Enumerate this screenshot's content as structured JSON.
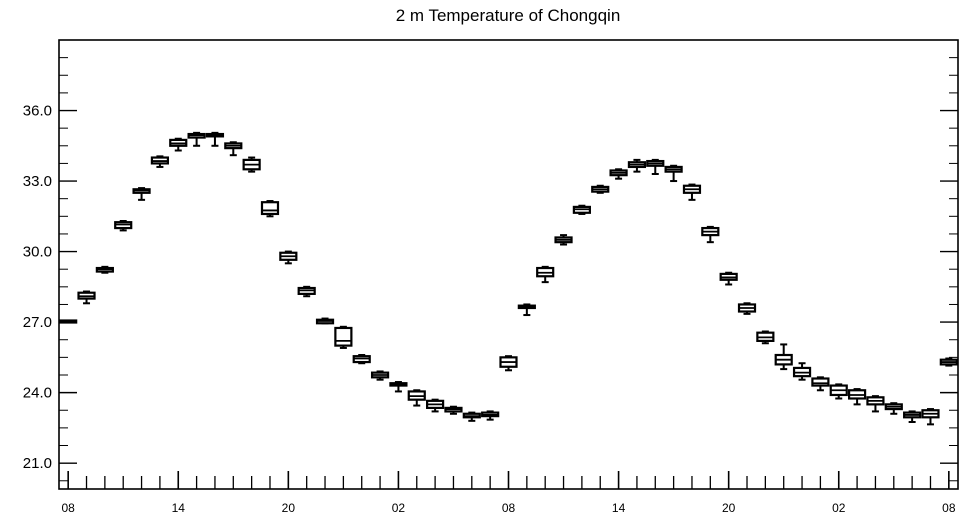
{
  "chart_data": {
    "type": "boxplot",
    "title": "2 m Temperature of Chongqin",
    "xlabel": "",
    "ylabel": "",
    "ylim": [
      19.9,
      39.0
    ],
    "yticks": [
      21.0,
      24.0,
      27.0,
      30.0,
      33.0,
      36.0
    ],
    "ytick_labels": [
      "21.0",
      "24.0",
      "27.0",
      "30.0",
      "33.0",
      "36.0"
    ],
    "xlim": [
      -0.5,
      48.5
    ],
    "xticks": [
      0,
      6,
      12,
      18,
      24,
      30,
      36,
      42,
      48
    ],
    "xtick_labels": [
      "08",
      "14",
      "20",
      "02",
      "08",
      "14",
      "20",
      "02",
      "08"
    ],
    "grid": false,
    "boxes": [
      {
        "x": 0,
        "min": 27.0,
        "q1": 27.0,
        "median": 27.0,
        "q3": 27.05,
        "max": 27.05
      },
      {
        "x": 1,
        "min": 27.8,
        "q1": 28.0,
        "median": 28.1,
        "q3": 28.25,
        "max": 28.3
      },
      {
        "x": 2,
        "min": 29.1,
        "q1": 29.15,
        "median": 29.25,
        "q3": 29.3,
        "max": 29.35
      },
      {
        "x": 3,
        "min": 30.9,
        "q1": 31.0,
        "median": 31.15,
        "q3": 31.25,
        "max": 31.3
      },
      {
        "x": 4,
        "min": 32.2,
        "q1": 32.5,
        "median": 32.6,
        "q3": 32.65,
        "max": 32.7
      },
      {
        "x": 5,
        "min": 33.6,
        "q1": 33.75,
        "median": 33.85,
        "q3": 34.0,
        "max": 34.05
      },
      {
        "x": 6,
        "min": 34.3,
        "q1": 34.5,
        "median": 34.6,
        "q3": 34.75,
        "max": 34.8
      },
      {
        "x": 7,
        "min": 34.5,
        "q1": 34.85,
        "median": 34.95,
        "q3": 35.0,
        "max": 35.05
      },
      {
        "x": 8,
        "min": 34.5,
        "q1": 34.9,
        "median": 34.95,
        "q3": 35.0,
        "max": 35.05
      },
      {
        "x": 9,
        "min": 34.1,
        "q1": 34.4,
        "median": 34.5,
        "q3": 34.6,
        "max": 34.65
      },
      {
        "x": 10,
        "min": 33.4,
        "q1": 33.5,
        "median": 33.7,
        "q3": 33.9,
        "max": 34.0
      },
      {
        "x": 11,
        "min": 31.5,
        "q1": 31.6,
        "median": 31.75,
        "q3": 32.1,
        "max": 32.15
      },
      {
        "x": 12,
        "min": 29.5,
        "q1": 29.65,
        "median": 29.8,
        "q3": 29.95,
        "max": 30.0
      },
      {
        "x": 13,
        "min": 28.1,
        "q1": 28.2,
        "median": 28.35,
        "q3": 28.45,
        "max": 28.5
      },
      {
        "x": 14,
        "min": 26.95,
        "q1": 26.95,
        "median": 27.05,
        "q3": 27.1,
        "max": 27.15
      },
      {
        "x": 15,
        "min": 25.9,
        "q1": 26.0,
        "median": 26.2,
        "q3": 26.75,
        "max": 26.8
      },
      {
        "x": 16,
        "min": 25.25,
        "q1": 25.3,
        "median": 25.45,
        "q3": 25.55,
        "max": 25.6
      },
      {
        "x": 17,
        "min": 24.55,
        "q1": 24.65,
        "median": 24.75,
        "q3": 24.85,
        "max": 24.9
      },
      {
        "x": 18,
        "min": 24.05,
        "q1": 24.3,
        "median": 24.35,
        "q3": 24.4,
        "max": 24.45
      },
      {
        "x": 19,
        "min": 23.45,
        "q1": 23.7,
        "median": 23.85,
        "q3": 24.05,
        "max": 24.1
      },
      {
        "x": 20,
        "min": 23.2,
        "q1": 23.35,
        "median": 23.5,
        "q3": 23.65,
        "max": 23.7
      },
      {
        "x": 21,
        "min": 23.1,
        "q1": 23.2,
        "median": 23.3,
        "q3": 23.35,
        "max": 23.4
      },
      {
        "x": 22,
        "min": 22.8,
        "q1": 22.95,
        "median": 23.0,
        "q3": 23.1,
        "max": 23.15
      },
      {
        "x": 23,
        "min": 22.85,
        "q1": 23.0,
        "median": 23.05,
        "q3": 23.15,
        "max": 23.2
      },
      {
        "x": 24,
        "min": 24.95,
        "q1": 25.1,
        "median": 25.3,
        "q3": 25.5,
        "max": 25.55
      },
      {
        "x": 25,
        "min": 27.3,
        "q1": 27.6,
        "median": 27.65,
        "q3": 27.7,
        "max": 27.75
      },
      {
        "x": 26,
        "min": 28.7,
        "q1": 28.95,
        "median": 29.1,
        "q3": 29.3,
        "max": 29.35
      },
      {
        "x": 27,
        "min": 30.3,
        "q1": 30.4,
        "median": 30.5,
        "q3": 30.6,
        "max": 30.7
      },
      {
        "x": 28,
        "min": 31.6,
        "q1": 31.65,
        "median": 31.8,
        "q3": 31.9,
        "max": 31.95
      },
      {
        "x": 29,
        "min": 32.5,
        "q1": 32.55,
        "median": 32.65,
        "q3": 32.75,
        "max": 32.8
      },
      {
        "x": 30,
        "min": 33.1,
        "q1": 33.25,
        "median": 33.35,
        "q3": 33.45,
        "max": 33.5
      },
      {
        "x": 31,
        "min": 33.4,
        "q1": 33.6,
        "median": 33.7,
        "q3": 33.8,
        "max": 33.9
      },
      {
        "x": 32,
        "min": 33.3,
        "q1": 33.65,
        "median": 33.75,
        "q3": 33.85,
        "max": 33.9
      },
      {
        "x": 33,
        "min": 33.0,
        "q1": 33.4,
        "median": 33.5,
        "q3": 33.6,
        "max": 33.65
      },
      {
        "x": 34,
        "min": 32.2,
        "q1": 32.5,
        "median": 32.65,
        "q3": 32.8,
        "max": 32.85
      },
      {
        "x": 35,
        "min": 30.4,
        "q1": 30.7,
        "median": 30.85,
        "q3": 31.0,
        "max": 31.05
      },
      {
        "x": 36,
        "min": 28.6,
        "q1": 28.8,
        "median": 28.9,
        "q3": 29.05,
        "max": 29.1
      },
      {
        "x": 37,
        "min": 27.35,
        "q1": 27.45,
        "median": 27.6,
        "q3": 27.75,
        "max": 27.8
      },
      {
        "x": 38,
        "min": 26.1,
        "q1": 26.2,
        "median": 26.35,
        "q3": 26.55,
        "max": 26.6
      },
      {
        "x": 39,
        "min": 25.0,
        "q1": 25.2,
        "median": 25.4,
        "q3": 25.6,
        "max": 26.05
      },
      {
        "x": 40,
        "min": 24.55,
        "q1": 24.7,
        "median": 24.85,
        "q3": 25.05,
        "max": 25.25
      },
      {
        "x": 41,
        "min": 24.1,
        "q1": 24.3,
        "median": 24.4,
        "q3": 24.6,
        "max": 24.65
      },
      {
        "x": 42,
        "min": 23.75,
        "q1": 23.9,
        "median": 24.1,
        "q3": 24.3,
        "max": 24.35
      },
      {
        "x": 43,
        "min": 23.5,
        "q1": 23.75,
        "median": 23.9,
        "q3": 24.1,
        "max": 24.15
      },
      {
        "x": 44,
        "min": 23.2,
        "q1": 23.5,
        "median": 23.65,
        "q3": 23.8,
        "max": 23.85
      },
      {
        "x": 45,
        "min": 23.1,
        "q1": 23.3,
        "median": 23.4,
        "q3": 23.5,
        "max": 23.55
      },
      {
        "x": 46,
        "min": 22.75,
        "q1": 22.95,
        "median": 23.05,
        "q3": 23.15,
        "max": 23.2
      },
      {
        "x": 47,
        "min": 22.65,
        "q1": 22.95,
        "median": 23.1,
        "q3": 23.25,
        "max": 23.3
      },
      {
        "x": 48,
        "min": 25.15,
        "q1": 25.2,
        "median": 25.3,
        "q3": 25.4,
        "max": 25.45
      }
    ]
  }
}
